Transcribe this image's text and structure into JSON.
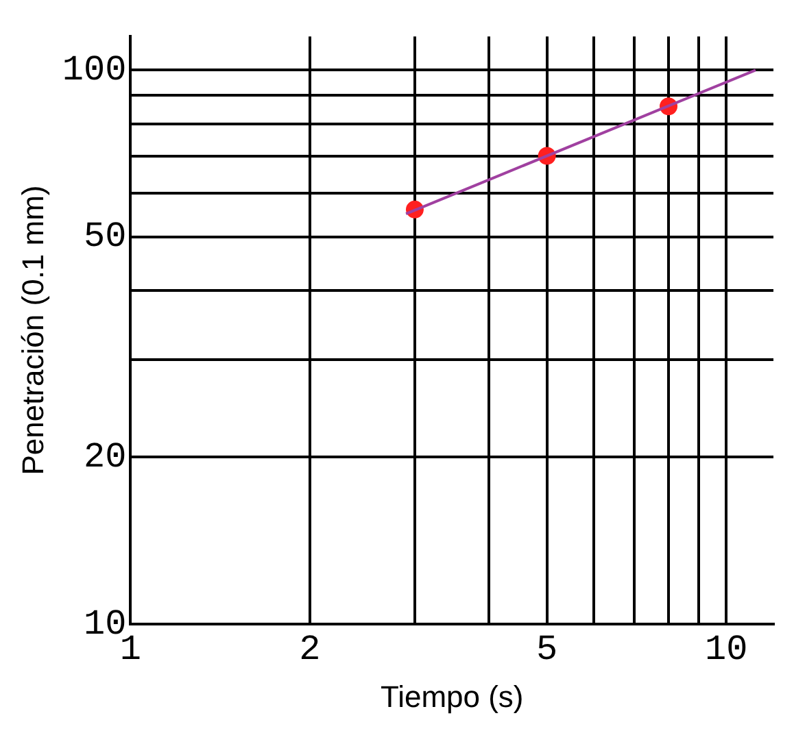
{
  "chart_data": {
    "type": "scatter",
    "xlabel": "Tiempo (s)",
    "ylabel": "Penetración (0.1 mm)",
    "log": "xy",
    "grid": true,
    "legend": false,
    "xlim": [
      1,
      12
    ],
    "ylim": [
      10,
      115
    ],
    "xticks": [
      1,
      2,
      {
        "value": 3,
        "label": null
      },
      {
        "value": 4,
        "label": null
      },
      5,
      {
        "value": 6,
        "label": null
      },
      {
        "value": 7,
        "label": null
      },
      {
        "value": 8,
        "label": null
      },
      {
        "value": 9,
        "label": null
      },
      10
    ],
    "yticks": [
      10,
      20,
      {
        "value": 30,
        "label": null
      },
      {
        "value": 40,
        "label": null
      },
      50,
      {
        "value": 60,
        "label": null
      },
      {
        "value": 70,
        "label": null
      },
      {
        "value": 80,
        "label": null
      },
      {
        "value": 90,
        "label": null
      },
      100
    ],
    "series": [
      {
        "type": "line",
        "color": "#a040a0",
        "marker": "none",
        "x": [
          2.9,
          11.2
        ],
        "values": [
          55,
          100
        ]
      },
      {
        "color": "#ff2020",
        "marker": "circle",
        "x": [
          3,
          5,
          8
        ],
        "values": [
          56,
          70,
          86
        ]
      }
    ]
  }
}
